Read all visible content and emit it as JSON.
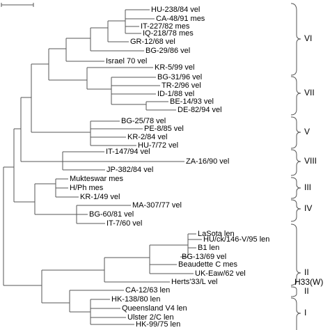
{
  "leaves": [
    "HU-238/84 vel",
    "CA-48/91 mes",
    "IT-227/82 mes",
    "IQ-218/78 mes",
    "GR-12/68 vel",
    "BG-29/86 vel",
    "Israel 70 vel",
    "KR-5/99 vel",
    "BG-31/96 vel",
    "TR-2/96 vel",
    "ID-1/88 vel",
    "BE-14/93 vel",
    "DE-82/94 vel",
    "BG-25/78 vel",
    "PE-8/85 vel",
    "KR-2/84 vel",
    "HU-7/72 vel",
    "IT-147/94 vel",
    "ZA-16/90 vel",
    "JP-382/84 vel",
    "Mukteswar mes",
    "H/Ph mes",
    "KR-1/49 vel",
    "MA-307/77 vel",
    "BG-60/81 vel",
    "IT-7/60 vel",
    "LaSota len",
    "HU/ck/146-V/95 len",
    "B1 len",
    "BG-13/69 vel",
    "Beaudette C mes",
    "UK-Eaw/62 vel",
    "Herts'33/L vel",
    "CA-12/63 len",
    "HK-138/80 len",
    "Queensland V4 len",
    "Ulster 2/C len",
    "HK-99/75 len"
  ],
  "groups": [
    "VI",
    "VII",
    "V",
    "VIII",
    "III",
    "IV",
    "II",
    "H33(W)",
    "II",
    "I"
  ]
}
